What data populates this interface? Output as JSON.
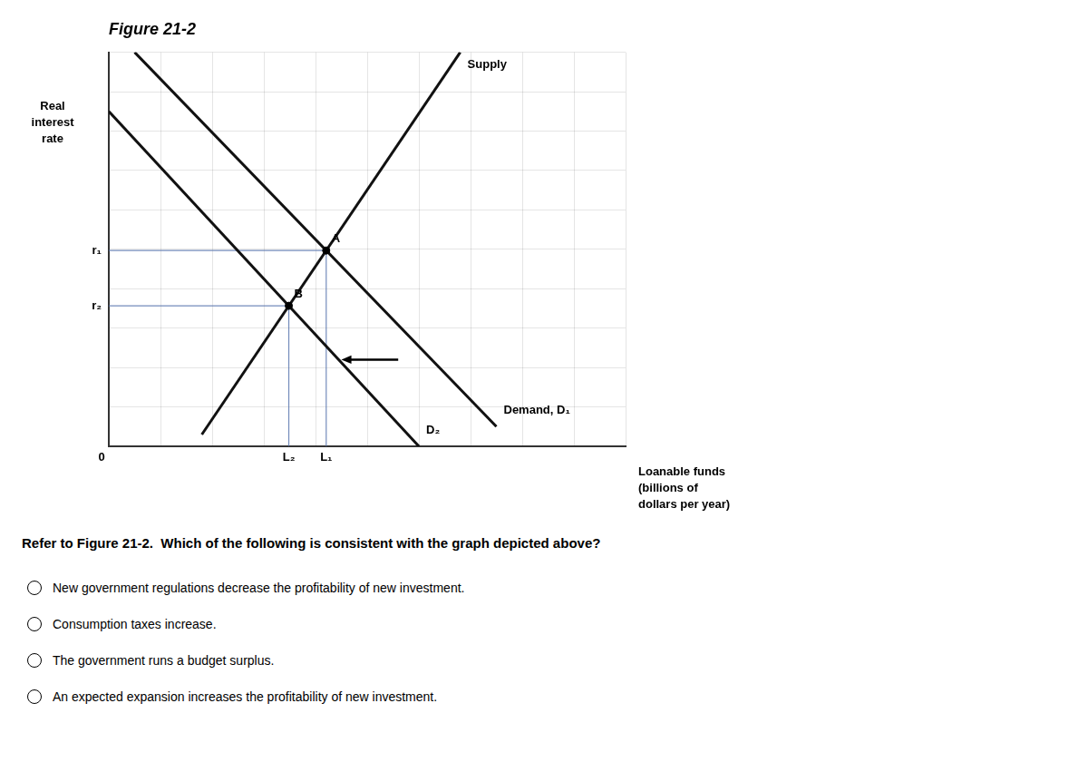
{
  "chart_data": {
    "type": "line",
    "title": "Figure 21-2",
    "y_label": [
      "Real",
      "interest",
      "rate"
    ],
    "x_label": [
      "Loanable funds",
      "(billions of",
      "dollars per year)"
    ],
    "xlim": [
      0,
      10
    ],
    "ylim": [
      0,
      10
    ],
    "xticks": [
      0,
      1,
      2,
      3,
      4,
      5,
      6,
      7,
      8,
      9,
      10
    ],
    "yticks": [
      0,
      1,
      2,
      3,
      4,
      5,
      6,
      7,
      8,
      9,
      10
    ],
    "tick_labels": false,
    "grid": true,
    "series": [
      {
        "name": "Supply",
        "color": "#111111",
        "x": [
          1.8,
          6.8
        ],
        "values": [
          0.3,
          10.0
        ]
      },
      {
        "name": "Demand, D₁",
        "color": "#111111",
        "x": [
          0.5,
          7.5
        ],
        "values": [
          10.0,
          0.5
        ]
      },
      {
        "name": "D₂",
        "color": "#111111",
        "x": [
          0.0,
          6.0
        ],
        "values": [
          8.5,
          0.0
        ]
      }
    ],
    "points": [
      {
        "label": "A",
        "x": 4.20684575,
        "y": 4.96928076,
        "x_mark": "L₁",
        "y_mark": "r₁"
      },
      {
        "label": "B",
        "x": 3.48321748,
        "y": 3.56544191,
        "x_mark": "L₂",
        "y_mark": "r₂"
      }
    ],
    "origin_label": "0",
    "arrow": {
      "from": [
        5.6,
        2.2
      ],
      "to": [
        4.5,
        2.2
      ]
    },
    "question": "Refer to Figure 21-2.  Which of the following is consistent with the graph depicted above?",
    "options": [
      "New government regulations decrease the profitability of new investment.",
      "Consumption taxes increase.",
      "The government runs a budget surplus.",
      "An expected expansion increases the profitability of new investment."
    ]
  }
}
